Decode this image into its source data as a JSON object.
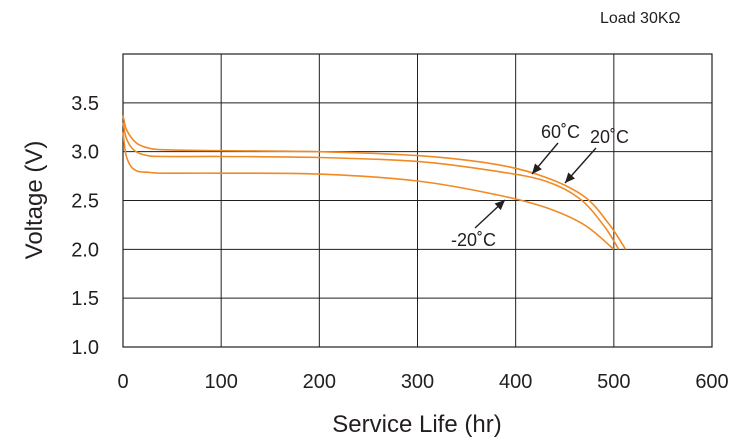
{
  "chart_data": {
    "type": "line",
    "note": "Load 30KΩ",
    "xlabel": "Service Life (hr)",
    "ylabel": "Voltage (V)",
    "xlim": [
      0,
      600
    ],
    "ylim": [
      1.0,
      3.5
    ],
    "x_ticks": [
      "0",
      "100",
      "200",
      "300",
      "400",
      "500",
      "600"
    ],
    "y_ticks": [
      "1.0",
      "1.5",
      "2.0",
      "2.5",
      "3.0",
      "3.5"
    ],
    "grid": true,
    "color": "#f08a24",
    "series": [
      {
        "name": "60˚C",
        "x": [
          0,
          3,
          8,
          15,
          25,
          40,
          100,
          200,
          300,
          380,
          430,
          470,
          495,
          512
        ],
        "y": [
          3.37,
          3.24,
          3.15,
          3.08,
          3.04,
          3.02,
          3.01,
          3.0,
          2.96,
          2.87,
          2.74,
          2.54,
          2.26,
          2.0
        ]
      },
      {
        "name": "20˚C",
        "x": [
          0,
          3,
          8,
          15,
          25,
          40,
          100,
          200,
          300,
          380,
          430,
          465,
          490,
          505
        ],
        "y": [
          3.3,
          3.15,
          3.05,
          2.99,
          2.96,
          2.95,
          2.95,
          2.94,
          2.9,
          2.8,
          2.7,
          2.52,
          2.24,
          2.0
        ]
      },
      {
        "name": "-20˚C",
        "x": [
          0,
          3,
          8,
          15,
          25,
          40,
          100,
          200,
          300,
          380,
          430,
          470,
          500
        ],
        "y": [
          3.2,
          2.97,
          2.85,
          2.8,
          2.79,
          2.78,
          2.78,
          2.77,
          2.7,
          2.56,
          2.43,
          2.25,
          2.0
        ]
      }
    ],
    "annotations": [
      {
        "label": "60˚C",
        "series": "60˚C"
      },
      {
        "label": "20˚C",
        "series": "20˚C"
      },
      {
        "label": "-20˚C",
        "series": "-20˚C"
      }
    ]
  }
}
